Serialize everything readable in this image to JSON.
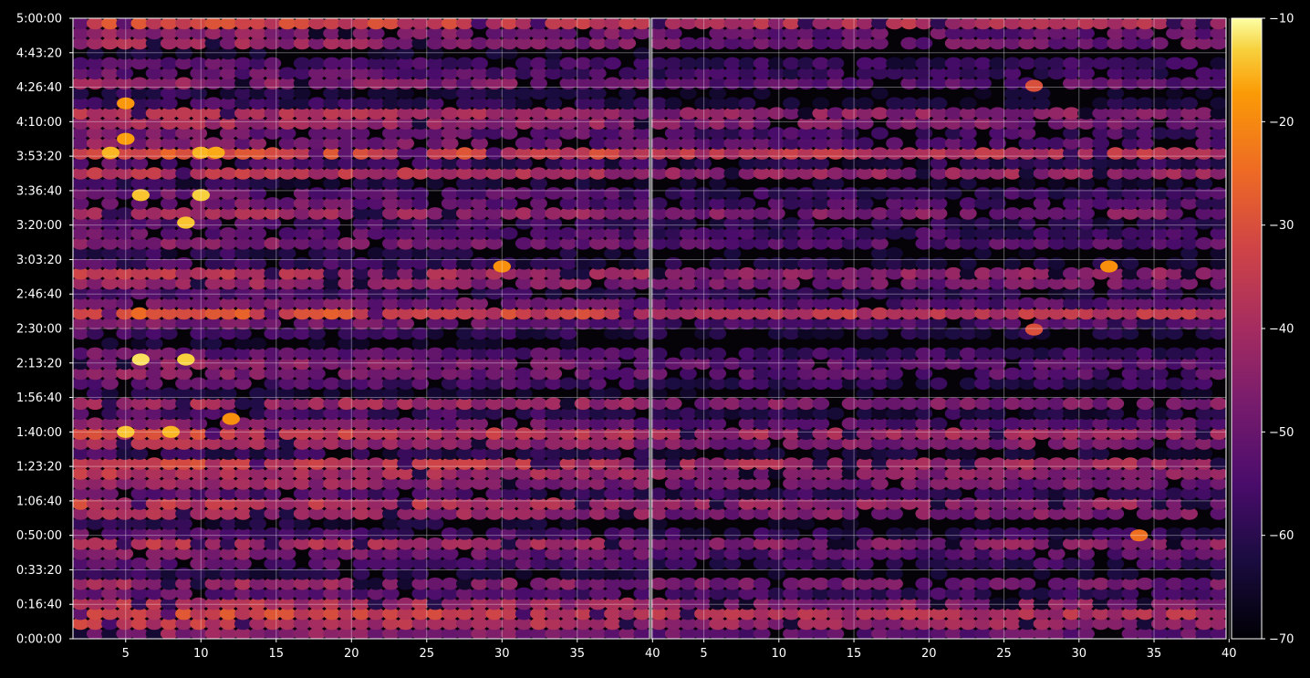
{
  "chart_data": {
    "type": "heatmap",
    "title": "",
    "xlabel": "",
    "ylabel": "",
    "panels": [
      {
        "name": "",
        "xlim": [
          1.5,
          39.8
        ],
        "x_ticks": [
          5,
          10,
          15,
          20,
          25,
          30,
          35,
          40
        ]
      },
      {
        "name": "",
        "xlim": [
          1.5,
          39.8
        ],
        "x_ticks": [
          5,
          10,
          15,
          20,
          25,
          30,
          35,
          40
        ]
      }
    ],
    "x_columns": 39,
    "y_ticks": [
      "0:00:00",
      "0:16:40",
      "0:33:20",
      "0:50:00",
      "1:06:40",
      "1:23:20",
      "1:40:00",
      "1:56:40",
      "2:13:20",
      "2:30:00",
      "2:46:40",
      "3:03:20",
      "3:20:00",
      "3:36:40",
      "3:53:20",
      "4:10:00",
      "4:26:40",
      "4:43:20",
      "5:00:00"
    ],
    "ylim_seconds": [
      0,
      18000
    ],
    "row_count": 62,
    "grid": true,
    "colorbar": {
      "colormap": "inferno",
      "min": -70,
      "max": -10,
      "ticks": [
        "−10",
        "−20",
        "−30",
        "−40",
        "−50",
        "−60",
        "−70"
      ]
    },
    "row_levels_dB": [
      -44,
      -36,
      -32,
      -38,
      -50,
      -42,
      -60,
      -50,
      -46,
      -38,
      -52,
      -62,
      -40,
      -36,
      -52,
      -42,
      -38,
      -34,
      -58,
      -40,
      -34,
      -46,
      -54,
      -40,
      -62,
      -52,
      -46,
      -44,
      -50,
      -66,
      -56,
      -48,
      -30,
      -46,
      -54,
      -42,
      -38,
      -56,
      -60,
      -46,
      -50,
      -54,
      -40,
      -48,
      -50,
      -60,
      -36,
      -54,
      -30,
      -46,
      -48,
      -40,
      -38,
      -56,
      -60,
      -44,
      -50,
      -52,
      -64,
      -42,
      -44,
      -32
    ],
    "hotspots": [
      {
        "panel": 0,
        "time_s": 8100,
        "x": 6,
        "value": -12
      },
      {
        "panel": 0,
        "time_s": 8100,
        "x": 9,
        "value": -13
      },
      {
        "panel": 0,
        "time_s": 12870,
        "x": 6,
        "value": -14
      },
      {
        "panel": 0,
        "time_s": 12870,
        "x": 10,
        "value": -13
      },
      {
        "panel": 0,
        "time_s": 12070,
        "x": 9,
        "value": -14
      },
      {
        "panel": 0,
        "time_s": 14100,
        "x": 4,
        "value": -15
      },
      {
        "panel": 0,
        "time_s": 14100,
        "x": 10,
        "value": -15
      },
      {
        "panel": 0,
        "time_s": 14100,
        "x": 11,
        "value": -16
      },
      {
        "panel": 0,
        "time_s": 14500,
        "x": 5,
        "value": -17
      },
      {
        "panel": 0,
        "time_s": 6000,
        "x": 5,
        "value": -14
      },
      {
        "panel": 0,
        "time_s": 6000,
        "x": 8,
        "value": -15
      },
      {
        "panel": 0,
        "time_s": 6380,
        "x": 12,
        "value": -19
      },
      {
        "panel": 0,
        "time_s": 15530,
        "x": 5,
        "value": -18
      },
      {
        "panel": 0,
        "time_s": 10800,
        "x": 30,
        "value": -19
      },
      {
        "panel": 1,
        "time_s": 10800,
        "x": 32,
        "value": -19
      },
      {
        "panel": 1,
        "time_s": 3000,
        "x": 34,
        "value": -24
      },
      {
        "panel": 1,
        "time_s": 8970,
        "x": 27,
        "value": -30
      },
      {
        "panel": 1,
        "time_s": 16040,
        "x": 27,
        "value": -30
      }
    ]
  }
}
